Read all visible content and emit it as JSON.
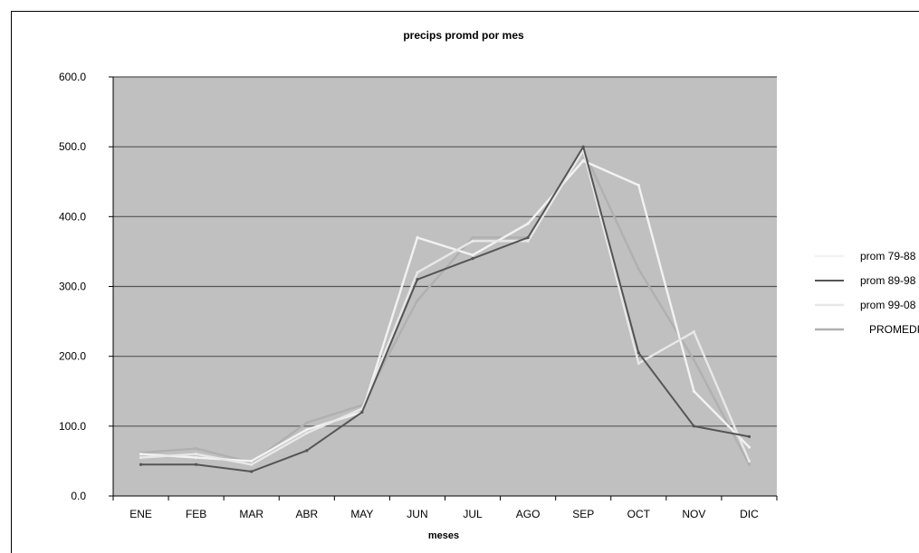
{
  "chart_data": {
    "type": "line",
    "title": "precips promd por mes",
    "xlabel": "meses",
    "ylabel": "",
    "categories": [
      "ENE",
      "FEB",
      "MAR",
      "ABR",
      "MAY",
      "JUN",
      "JUL",
      "AGO",
      "SEP",
      "OCT",
      "NOV",
      "DIC"
    ],
    "y_tick_labels": [
      "0.0",
      "100.0",
      "200.0",
      "300.0",
      "400.0",
      "500.0",
      "600.0"
    ],
    "ylim": [
      0,
      600
    ],
    "grid": true,
    "legend_position": "right",
    "series": [
      {
        "name": "prom 79-88",
        "color": "#f2f2f2",
        "values": [
          60,
          55,
          50,
          95,
          120,
          370,
          345,
          390,
          480,
          445,
          150,
          70
        ]
      },
      {
        "name": "prom 89-98",
        "color": "#555555",
        "values": [
          45,
          45,
          35,
          65,
          120,
          310,
          340,
          370,
          500,
          205,
          100,
          85
        ]
      },
      {
        "name": "prom 99-08",
        "color": "#e8e8e8",
        "values": [
          55,
          60,
          45,
          90,
          125,
          320,
          365,
          365,
          495,
          190,
          235,
          50
        ]
      },
      {
        "name": "PROMEDIO",
        "color": "#b0b0b0",
        "values": [
          62,
          68,
          48,
          105,
          130,
          280,
          370,
          370,
          495,
          325,
          195,
          45
        ]
      }
    ],
    "plot_bg": "#c0c0c0",
    "grid_color": "#555555"
  }
}
